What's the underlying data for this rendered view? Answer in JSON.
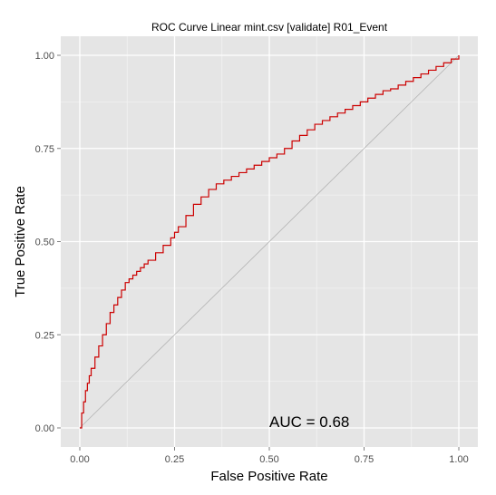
{
  "chart_data": {
    "type": "line",
    "title": "ROC Curve Linear mint.csv [validate] R01_Event",
    "xlabel": "False Positive Rate",
    "ylabel": "True Positive Rate",
    "xlim": [
      0,
      1
    ],
    "ylim": [
      0,
      1
    ],
    "x_ticks": [
      "0.00",
      "0.25",
      "0.50",
      "0.75",
      "1.00"
    ],
    "y_ticks": [
      "0.00",
      "0.25",
      "0.50",
      "0.75",
      "1.00"
    ],
    "grid": true,
    "legend": "none",
    "annotation": {
      "text": "AUC = 0.68",
      "x": 0.5,
      "y": 0.0
    },
    "series": [
      {
        "color": "#cc0000",
        "x": [
          0.0,
          0.005,
          0.01,
          0.015,
          0.02,
          0.025,
          0.03,
          0.04,
          0.05,
          0.06,
          0.07,
          0.08,
          0.09,
          0.1,
          0.11,
          0.12,
          0.13,
          0.14,
          0.15,
          0.16,
          0.17,
          0.18,
          0.2,
          0.22,
          0.24,
          0.25,
          0.26,
          0.28,
          0.3,
          0.32,
          0.34,
          0.36,
          0.38,
          0.4,
          0.42,
          0.44,
          0.46,
          0.48,
          0.5,
          0.52,
          0.54,
          0.56,
          0.58,
          0.6,
          0.62,
          0.64,
          0.66,
          0.68,
          0.7,
          0.72,
          0.74,
          0.76,
          0.78,
          0.8,
          0.82,
          0.84,
          0.86,
          0.88,
          0.9,
          0.92,
          0.94,
          0.96,
          0.98,
          1.0
        ],
        "y": [
          0.0,
          0.04,
          0.07,
          0.1,
          0.12,
          0.14,
          0.16,
          0.19,
          0.22,
          0.25,
          0.28,
          0.31,
          0.33,
          0.35,
          0.37,
          0.39,
          0.4,
          0.41,
          0.42,
          0.43,
          0.44,
          0.45,
          0.47,
          0.49,
          0.51,
          0.525,
          0.54,
          0.57,
          0.6,
          0.62,
          0.64,
          0.655,
          0.665,
          0.675,
          0.685,
          0.695,
          0.705,
          0.715,
          0.725,
          0.735,
          0.75,
          0.77,
          0.785,
          0.8,
          0.815,
          0.825,
          0.835,
          0.845,
          0.855,
          0.865,
          0.875,
          0.885,
          0.895,
          0.905,
          0.91,
          0.92,
          0.93,
          0.94,
          0.95,
          0.96,
          0.97,
          0.98,
          0.99,
          1.0
        ]
      }
    ]
  }
}
